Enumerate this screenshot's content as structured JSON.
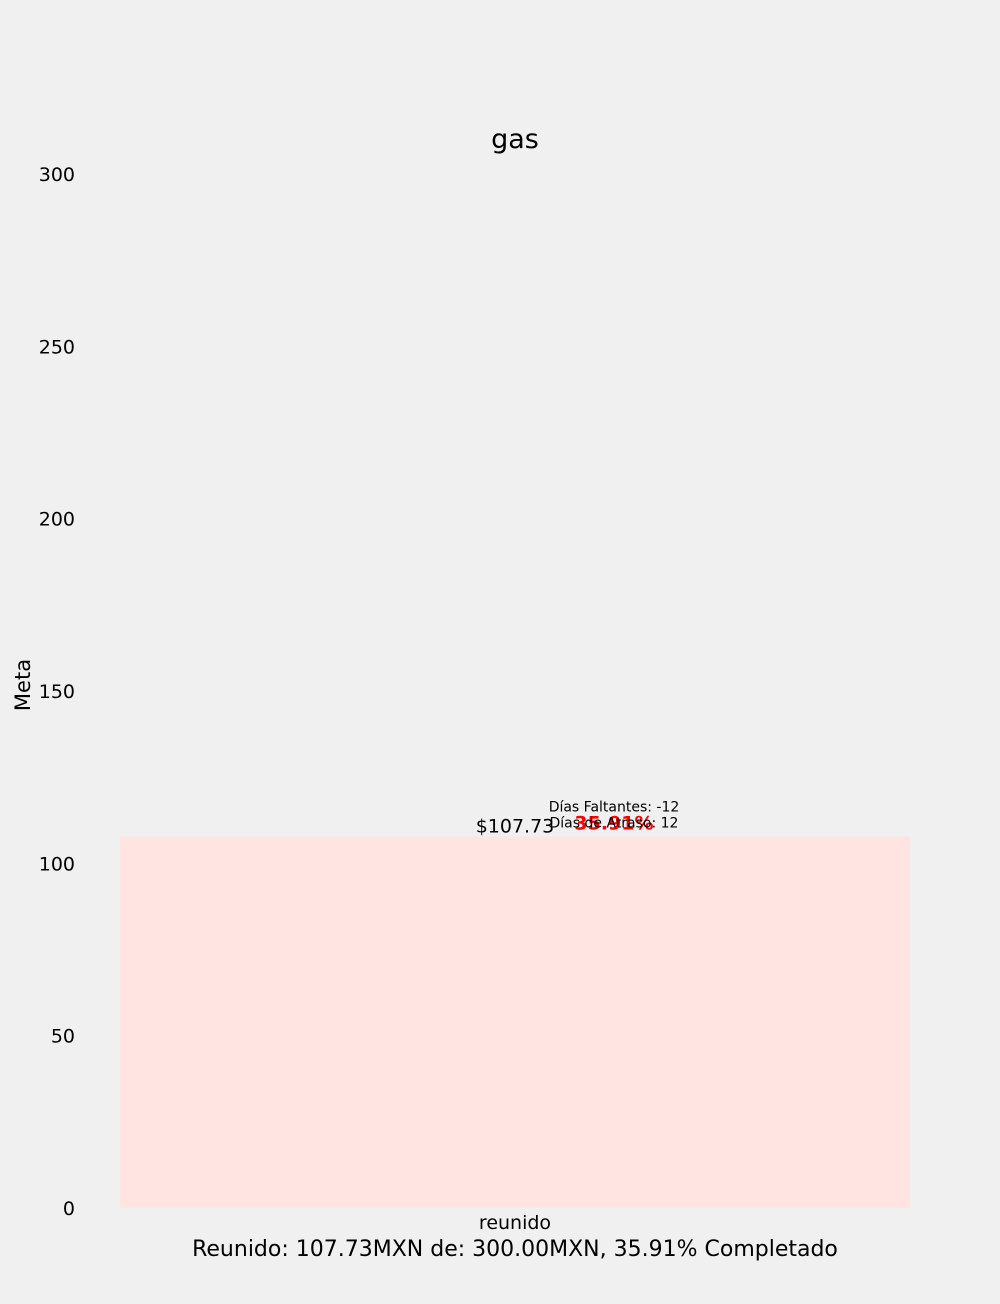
{
  "chart_data": {
    "type": "bar",
    "title": "gas",
    "xlabel": "Reunido: 107.73MXN de: 300.00MXN, 35.91% Completado",
    "ylabel": "Meta",
    "categories": [
      "reunido"
    ],
    "values": [
      107.73
    ],
    "ylim": [
      0,
      300
    ],
    "yticks": [
      0,
      50,
      100,
      150,
      200,
      250,
      300
    ],
    "grid": false,
    "bar_color": "#ffe4e1",
    "value_label": "$107.73",
    "percent_label": "35.91%",
    "percent_color": "#ff0000",
    "annotations": [
      "Días Faltantes: -12",
      "Días de Atraso: 12"
    ]
  }
}
